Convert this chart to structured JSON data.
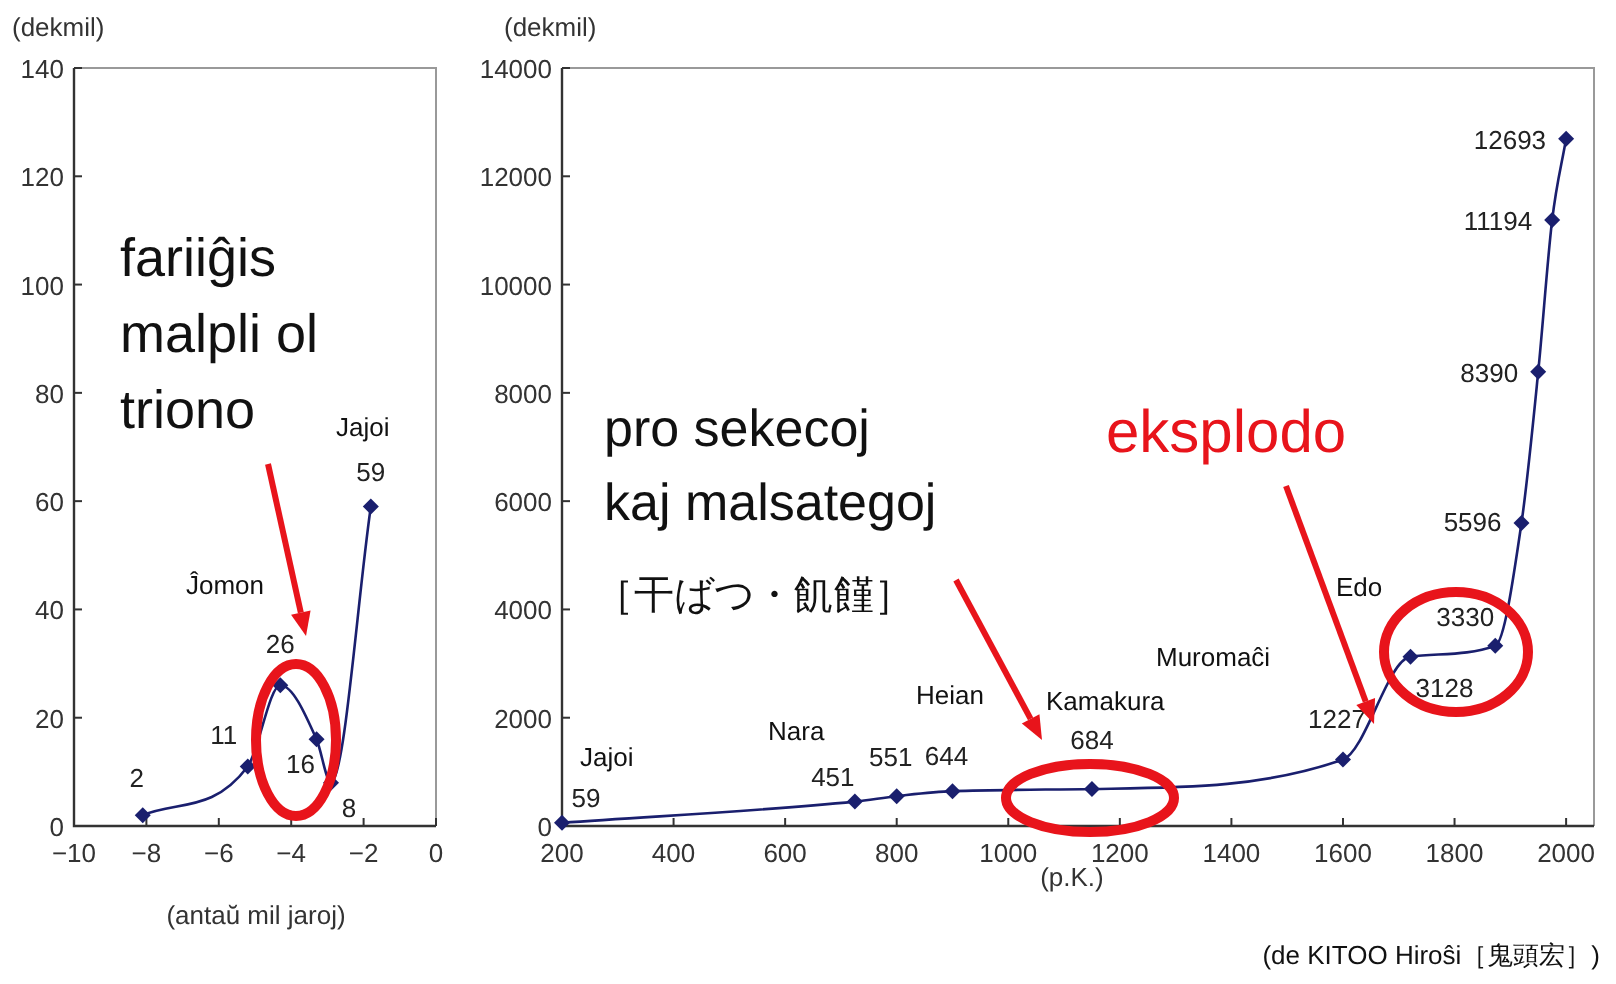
{
  "chart_data": [
    {
      "type": "line",
      "ylabel": "(dekmil)",
      "xlabel": "(antaŭ mil jaroj)",
      "x": [
        -8.1,
        -5.2,
        -4.3,
        -3.3,
        -2.9,
        -1.8
      ],
      "values": [
        2,
        11,
        26,
        16,
        8,
        59
      ],
      "color": "#1a1f6e",
      "marker": "diamond",
      "data_labels": true,
      "xlim": [
        -10,
        0
      ],
      "xticks": [
        -10,
        -8,
        -6,
        -4,
        -2,
        0
      ],
      "ylim": [
        0,
        140
      ],
      "yticks": [
        0,
        20,
        40,
        60,
        80,
        100,
        120,
        140
      ],
      "annotations": [
        "fariiĝis malpli ol triono",
        "Ĵomon",
        "Jajoi"
      ]
    },
    {
      "type": "line",
      "ylabel": "(dekmil)",
      "xlabel": "(p.K.)",
      "x": [
        200,
        725,
        800,
        900,
        1150,
        1600,
        1721,
        1873,
        1920,
        1950,
        1975,
        2000
      ],
      "values": [
        59,
        451,
        551,
        644,
        684,
        1227,
        3128,
        3330,
        5596,
        8390,
        11194,
        12693
      ],
      "color": "#1a1f6e",
      "marker": "diamond",
      "data_labels": true,
      "xlim": [
        200,
        2050
      ],
      "xticks": [
        200,
        400,
        600,
        800,
        1000,
        1200,
        1400,
        1600,
        1800,
        2000
      ],
      "ylim": [
        0,
        14000
      ],
      "yticks": [
        0,
        2000,
        4000,
        6000,
        8000,
        10000,
        12000,
        14000
      ],
      "annotations": [
        "Jajoi",
        "Nara",
        "Heian",
        "Kamakura",
        "Muromaĉi",
        "Edo",
        "pro sekecoj kaj malsategoj",
        "［干ばつ・飢饉］",
        "eksplodo",
        "(de KITOO Hiroŝi［鬼頭宏］)"
      ]
    }
  ]
}
